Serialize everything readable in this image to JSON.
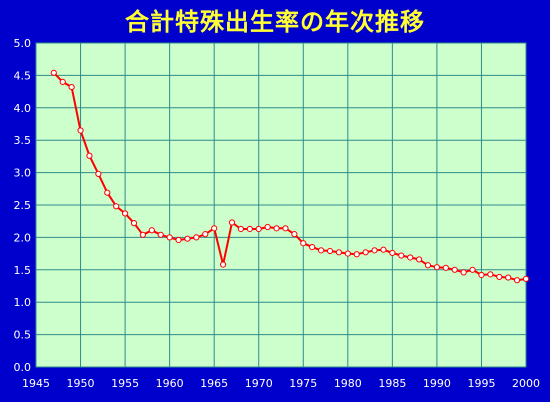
{
  "chart_data": {
    "type": "line",
    "title": "合計特殊出生率の年次推移",
    "xlabel": "",
    "ylabel": "",
    "xlim": [
      1945,
      2000
    ],
    "ylim": [
      0.0,
      5.0
    ],
    "x_ticks": [
      "1945",
      "1950",
      "1955",
      "1960",
      "1965",
      "1970",
      "1975",
      "1980",
      "1985",
      "1990",
      "1995",
      "2000"
    ],
    "y_ticks": [
      "0.0",
      "0.5",
      "1.0",
      "1.5",
      "2.0",
      "2.5",
      "3.0",
      "3.5",
      "4.0",
      "4.5",
      "5.0"
    ],
    "grid": true,
    "colors": {
      "background": "#0000cc",
      "plot_area": "#ccffcc",
      "grid": "#2e8b8b",
      "line": "#ff0000",
      "marker_fill": "#ffffff",
      "title": "#ffff33"
    },
    "series": [
      {
        "x": [
          1947,
          1948,
          1949,
          1950,
          1951,
          1952,
          1953,
          1954,
          1955,
          1956,
          1957,
          1958,
          1959,
          1960,
          1961,
          1962,
          1963,
          1964,
          1965,
          1966,
          1967,
          1968,
          1969,
          1970,
          1971,
          1972,
          1973,
          1974,
          1975,
          1976,
          1977,
          1978,
          1979,
          1980,
          1981,
          1982,
          1983,
          1984,
          1985,
          1986,
          1987,
          1988,
          1989,
          1990,
          1991,
          1992,
          1993,
          1994,
          1995,
          1996,
          1997,
          1998,
          1999,
          2000
        ],
        "values": [
          4.54,
          4.4,
          4.32,
          3.65,
          3.26,
          2.98,
          2.69,
          2.48,
          2.37,
          2.22,
          2.04,
          2.11,
          2.04,
          2.0,
          1.96,
          1.98,
          2.0,
          2.05,
          2.14,
          1.58,
          2.23,
          2.13,
          2.13,
          2.13,
          2.16,
          2.14,
          2.14,
          2.05,
          1.91,
          1.85,
          1.8,
          1.79,
          1.77,
          1.75,
          1.74,
          1.77,
          1.8,
          1.81,
          1.76,
          1.72,
          1.69,
          1.66,
          1.57,
          1.54,
          1.53,
          1.5,
          1.46,
          1.5,
          1.42,
          1.43,
          1.39,
          1.38,
          1.34,
          1.36
        ]
      }
    ]
  }
}
